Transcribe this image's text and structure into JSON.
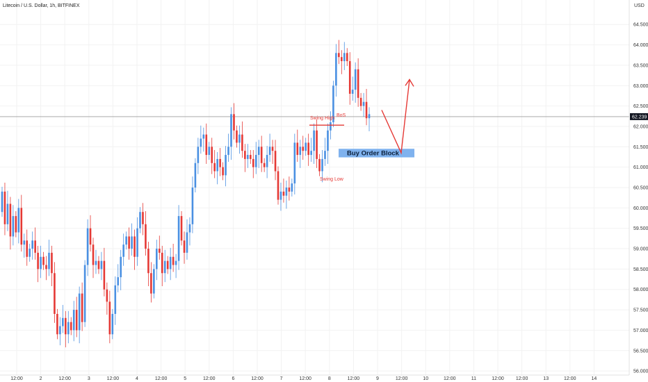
{
  "chart_data": {
    "type": "candlestick",
    "title": "Litecoin / U.S. Dollar, 1h, BITFINEX",
    "currency_label": "USD",
    "ylim": [
      55.9,
      65.1
    ],
    "y_ticks": [
      "56.000",
      "56.500",
      "57.000",
      "57.500",
      "58.000",
      "58.500",
      "59.000",
      "59.500",
      "60.000",
      "60.500",
      "61.000",
      "61.500",
      "62.000",
      "62.500",
      "63.000",
      "63.500",
      "64.000",
      "64.500"
    ],
    "x_ticks": [
      "12:00",
      "2",
      "12:00",
      "3",
      "12:00",
      "4",
      "12:00",
      "5",
      "12:00",
      "6",
      "12:00",
      "7",
      "12:00",
      "8",
      "12:00",
      "9",
      "12:00",
      "10",
      "12:00",
      "11",
      "12:00",
      "12:00",
      "13",
      "12:00",
      "14"
    ],
    "current_price": {
      "value": 62.239,
      "label": "62.239"
    },
    "colors": {
      "up": "#4a90e2",
      "down": "#e53935",
      "annotation": "#e53935",
      "order_block": "#7fb2ee",
      "price_line": "#9e9e9e"
    },
    "candles_open_close": [
      [
        59.9,
        60.4
      ],
      [
        60.4,
        59.6
      ],
      [
        59.6,
        60.1
      ],
      [
        60.1,
        59.3
      ],
      [
        59.3,
        59.8
      ],
      [
        59.8,
        59.4
      ],
      [
        59.4,
        60.0
      ],
      [
        60.0,
        59.1
      ],
      [
        59.1,
        59.2
      ],
      [
        59.2,
        58.8
      ],
      [
        58.8,
        59.0
      ],
      [
        59.0,
        59.2
      ],
      [
        59.2,
        58.9
      ],
      [
        58.9,
        58.5
      ],
      [
        58.5,
        58.8
      ],
      [
        58.8,
        58.6
      ],
      [
        58.6,
        58.5
      ],
      [
        58.5,
        58.9
      ],
      [
        58.9,
        58.4
      ],
      [
        58.4,
        57.4
      ],
      [
        57.4,
        56.9
      ],
      [
        56.9,
        57.1
      ],
      [
        57.1,
        57.3
      ],
      [
        57.3,
        56.9
      ],
      [
        56.9,
        57.2
      ],
      [
        57.2,
        57.0
      ],
      [
        57.0,
        57.5
      ],
      [
        57.5,
        57.0
      ],
      [
        57.0,
        57.9
      ],
      [
        57.9,
        57.2
      ],
      [
        57.2,
        58.6
      ],
      [
        58.6,
        59.5
      ],
      [
        59.5,
        59.1
      ],
      [
        59.1,
        58.6
      ],
      [
        58.6,
        58.7
      ],
      [
        58.7,
        58.5
      ],
      [
        58.5,
        58.7
      ],
      [
        58.7,
        58.0
      ],
      [
        58.0,
        57.7
      ],
      [
        57.7,
        56.9
      ],
      [
        56.9,
        57.4
      ],
      [
        57.4,
        58.1
      ],
      [
        58.1,
        58.3
      ],
      [
        58.3,
        58.8
      ],
      [
        58.8,
        59.1
      ],
      [
        59.1,
        59.3
      ],
      [
        59.3,
        59.0
      ],
      [
        59.0,
        59.3
      ],
      [
        59.3,
        58.8
      ],
      [
        58.8,
        59.5
      ],
      [
        59.5,
        59.9
      ],
      [
        59.9,
        59.6
      ],
      [
        59.6,
        59.0
      ],
      [
        59.0,
        58.4
      ],
      [
        58.4,
        57.9
      ],
      [
        57.9,
        58.5
      ],
      [
        58.5,
        59.0
      ],
      [
        59.0,
        58.9
      ],
      [
        58.9,
        58.4
      ],
      [
        58.4,
        58.7
      ],
      [
        58.7,
        58.5
      ],
      [
        58.5,
        58.8
      ],
      [
        58.8,
        58.6
      ],
      [
        58.6,
        58.7
      ],
      [
        58.7,
        59.8
      ],
      [
        59.8,
        59.2
      ],
      [
        59.2,
        58.9
      ],
      [
        58.9,
        59.4
      ],
      [
        59.4,
        59.6
      ],
      [
        59.6,
        60.5
      ],
      [
        60.5,
        61.1
      ],
      [
        61.1,
        61.5
      ],
      [
        61.5,
        61.7
      ],
      [
        61.7,
        61.8
      ],
      [
        61.8,
        61.3
      ],
      [
        61.3,
        61.5
      ],
      [
        61.5,
        61.1
      ],
      [
        61.1,
        60.9
      ],
      [
        60.9,
        61.2
      ],
      [
        61.2,
        61.0
      ],
      [
        61.0,
        60.8
      ],
      [
        60.8,
        61.3
      ],
      [
        61.3,
        61.5
      ],
      [
        61.5,
        62.3
      ],
      [
        62.3,
        61.9
      ],
      [
        61.9,
        61.6
      ],
      [
        61.6,
        61.8
      ],
      [
        61.8,
        61.4
      ],
      [
        61.4,
        61.2
      ],
      [
        61.2,
        61.3
      ],
      [
        61.3,
        61.2
      ],
      [
        61.2,
        61.0
      ],
      [
        61.0,
        61.3
      ],
      [
        61.3,
        61.5
      ],
      [
        61.5,
        61.1
      ],
      [
        61.1,
        61.0
      ],
      [
        61.0,
        61.3
      ],
      [
        61.3,
        61.5
      ],
      [
        61.5,
        61.4
      ],
      [
        61.4,
        60.9
      ],
      [
        60.9,
        60.2
      ],
      [
        60.2,
        60.4
      ],
      [
        60.4,
        60.3
      ],
      [
        60.3,
        60.5
      ],
      [
        60.5,
        60.4
      ],
      [
        60.4,
        60.6
      ],
      [
        60.6,
        61.6
      ],
      [
        61.6,
        61.3
      ],
      [
        61.3,
        61.5
      ],
      [
        61.5,
        61.4
      ],
      [
        61.4,
        61.6
      ],
      [
        61.6,
        61.3
      ],
      [
        61.3,
        61.4
      ],
      [
        61.4,
        61.9
      ],
      [
        61.9,
        61.2
      ],
      [
        61.2,
        60.9
      ],
      [
        60.9,
        61.2
      ],
      [
        61.2,
        61.4
      ],
      [
        61.4,
        61.9
      ],
      [
        61.9,
        62.1
      ],
      [
        62.1,
        63.0
      ],
      [
        63.0,
        63.8
      ],
      [
        63.8,
        63.7
      ],
      [
        63.7,
        63.6
      ],
      [
        63.6,
        63.8
      ],
      [
        63.8,
        63.6
      ],
      [
        63.6,
        62.8
      ],
      [
        62.8,
        62.9
      ],
      [
        62.9,
        63.4
      ],
      [
        63.4,
        62.7
      ],
      [
        62.7,
        62.5
      ],
      [
        62.5,
        62.6
      ],
      [
        62.6,
        62.2
      ],
      [
        62.2,
        62.3
      ]
    ],
    "annotations": {
      "swing_high": "Swing High",
      "bos": "BoS",
      "swing_low": "Swing Low",
      "order_block": "Buy Order Block"
    }
  }
}
